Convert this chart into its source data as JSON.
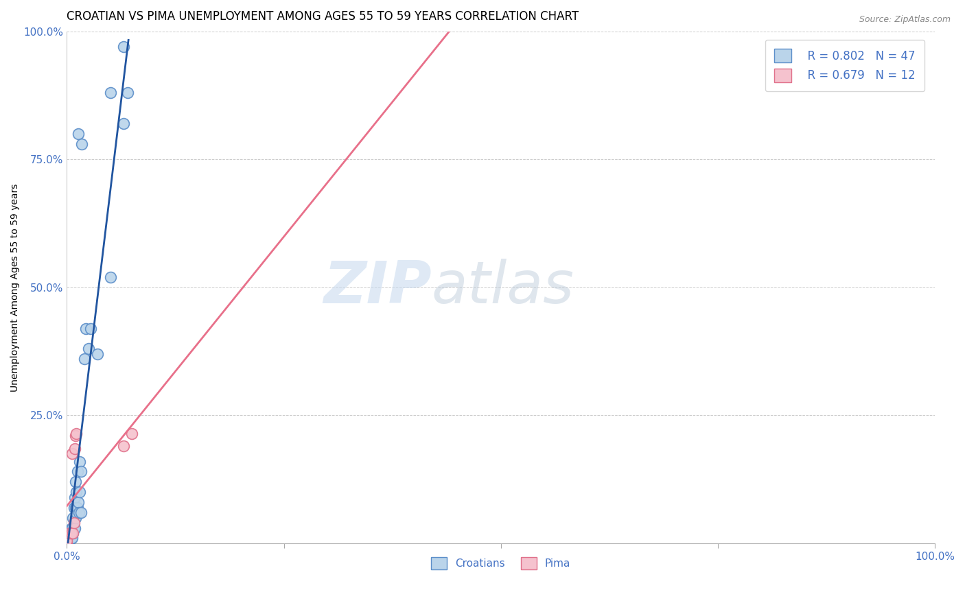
{
  "title": "CROATIAN VS PIMA UNEMPLOYMENT AMONG AGES 55 TO 59 YEARS CORRELATION CHART",
  "source": "Source: ZipAtlas.com",
  "ylabel": "Unemployment Among Ages 55 to 59 years",
  "xlim": [
    0,
    1.0
  ],
  "ylim": [
    0,
    1.0
  ],
  "xticks": [
    0.0,
    0.25,
    0.5,
    0.75,
    1.0
  ],
  "yticks": [
    0.0,
    0.25,
    0.5,
    0.75,
    1.0
  ],
  "xticklabels": [
    "0.0%",
    "",
    "",
    "",
    "100.0%"
  ],
  "yticklabels": [
    "",
    "25.0%",
    "50.0%",
    "75.0%",
    "100.0%"
  ],
  "croatian_fill": "#bad4ea",
  "croatian_edge": "#5b8ec9",
  "pima_fill": "#f5c2ce",
  "pima_edge": "#e0708a",
  "line_croatian": "#2155a0",
  "line_pima": "#e8708a",
  "legend_r_croatian": "R = 0.802",
  "legend_n_croatian": "N = 47",
  "legend_r_pima": "R = 0.679",
  "legend_n_pima": "N = 12",
  "watermark_zip": "ZIP",
  "watermark_atlas": "atlas",
  "grid_color": "#cccccc",
  "background_color": "#ffffff",
  "title_fontsize": 12,
  "axis_label_fontsize": 10,
  "tick_fontsize": 11,
  "croatian_x": [
    0.0,
    0.0,
    0.0,
    0.0,
    0.0,
    0.0,
    0.0,
    0.003,
    0.003,
    0.004,
    0.004,
    0.005,
    0.005,
    0.005,
    0.006,
    0.006,
    0.007,
    0.007,
    0.008,
    0.008,
    0.009,
    0.009,
    0.01,
    0.01,
    0.01,
    0.011,
    0.011,
    0.012,
    0.012,
    0.013,
    0.014,
    0.015,
    0.015,
    0.016,
    0.016,
    0.02,
    0.022,
    0.025,
    0.027,
    0.035,
    0.05,
    0.065,
    0.07,
    0.013,
    0.017,
    0.05,
    0.065
  ],
  "croatian_y": [
    0.0,
    0.0,
    0.0,
    0.0,
    0.005,
    0.005,
    0.005,
    0.005,
    0.01,
    0.01,
    0.015,
    0.01,
    0.02,
    0.03,
    0.01,
    0.03,
    0.02,
    0.05,
    0.03,
    0.07,
    0.03,
    0.09,
    0.05,
    0.07,
    0.12,
    0.06,
    0.1,
    0.07,
    0.14,
    0.08,
    0.06,
    0.1,
    0.16,
    0.06,
    0.14,
    0.36,
    0.42,
    0.38,
    0.42,
    0.37,
    0.52,
    0.82,
    0.88,
    0.8,
    0.78,
    0.88,
    0.97
  ],
  "pima_x": [
    0.0,
    0.0,
    0.003,
    0.005,
    0.006,
    0.007,
    0.008,
    0.009,
    0.01,
    0.011,
    0.065,
    0.075
  ],
  "pima_y": [
    0.0,
    0.005,
    0.02,
    0.02,
    0.175,
    0.02,
    0.04,
    0.185,
    0.21,
    0.215,
    0.19,
    0.215
  ],
  "marker_size": 130,
  "marker_lw": 1.2
}
